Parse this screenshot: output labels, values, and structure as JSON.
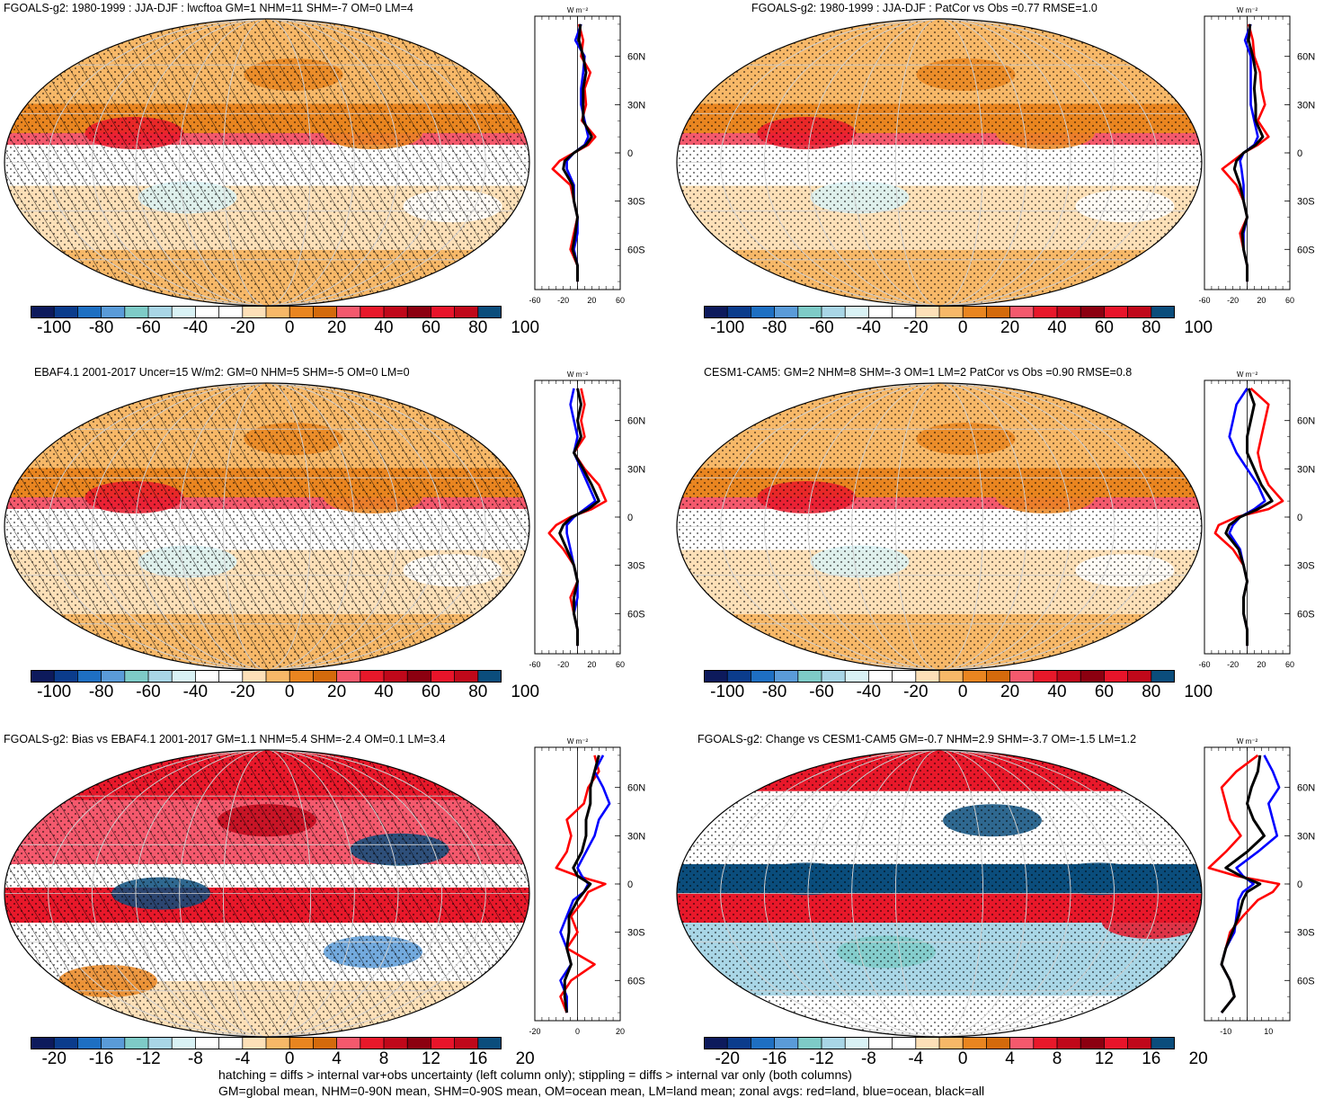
{
  "panels": [
    {
      "id": "p1",
      "title": "FGOALS-g2: 1980-1999 : JJA-DJF : lwcftoa GM=1 NHM=11 SHM=-7 OM=0 LM=4",
      "hatching": true,
      "pattern": "abs",
      "colorbar_labels": [
        "-100",
        "-80",
        "-60",
        "-40",
        "-20",
        "0",
        "20",
        "40",
        "60",
        "80",
        "100"
      ],
      "zonal": {
        "unit": "W m⁻²",
        "xticks": [
          "-60",
          "-20",
          "20",
          "60"
        ],
        "xlim": [
          -60,
          60
        ],
        "lat_labels": [
          "60N",
          "30N",
          "0",
          "30S",
          "60S"
        ],
        "lat": [
          80,
          70,
          60,
          50,
          40,
          30,
          20,
          10,
          5,
          0,
          -5,
          -10,
          -20,
          -30,
          -40,
          -50,
          -60,
          -70,
          -80
        ],
        "red": [
          2,
          8,
          5,
          18,
          10,
          12,
          6,
          25,
          15,
          -5,
          -25,
          -35,
          -10,
          -5,
          0,
          -5,
          -10,
          0,
          0
        ],
        "blue": [
          5,
          -3,
          10,
          8,
          5,
          5,
          10,
          15,
          10,
          -5,
          -15,
          -15,
          -5,
          -5,
          0,
          0,
          -5,
          0,
          0
        ],
        "black": [
          4,
          2,
          8,
          12,
          8,
          8,
          8,
          20,
          12,
          -5,
          -18,
          -20,
          -7,
          -5,
          0,
          -3,
          -7,
          0,
          0
        ]
      }
    },
    {
      "id": "p2",
      "title": "FGOALS-g2: 1980-1999 : JJA-DJF : PatCor vs Obs =0.77 RMSE=1.0",
      "hatching": false,
      "pattern": "abs",
      "colorbar_labels": [
        "-100",
        "-80",
        "-60",
        "-40",
        "-20",
        "0",
        "20",
        "40",
        "60",
        "80",
        "100"
      ],
      "zonal": {
        "unit": "W m⁻²",
        "xticks": [
          "-60",
          "-20",
          "20",
          "60"
        ],
        "xlim": [
          -60,
          60
        ],
        "lat_labels": [
          "60N",
          "30N",
          "0",
          "30S",
          "60S"
        ],
        "lat": [
          80,
          70,
          60,
          50,
          40,
          30,
          20,
          10,
          5,
          0,
          -5,
          -10,
          -20,
          -30,
          -40,
          -50,
          -60,
          -70,
          -80
        ],
        "red": [
          2,
          8,
          10,
          18,
          20,
          25,
          15,
          30,
          15,
          -5,
          -20,
          -35,
          -15,
          -5,
          0,
          -10,
          -5,
          0,
          0
        ],
        "blue": [
          5,
          -3,
          5,
          5,
          5,
          5,
          10,
          15,
          10,
          -5,
          -10,
          -8,
          -5,
          -5,
          0,
          -5,
          -5,
          0,
          0
        ],
        "black": [
          4,
          2,
          8,
          12,
          10,
          12,
          12,
          22,
          12,
          -5,
          -15,
          -18,
          -10,
          -5,
          0,
          -7,
          -5,
          0,
          0
        ]
      }
    },
    {
      "id": "p3",
      "title": "EBAF4.1 2001-2017 Uncer=15 W/m2: GM=0 NHM=5 SHM=-5 OM=0 LM=0",
      "hatching": true,
      "pattern": "abs",
      "colorbar_labels": [
        "-100",
        "-80",
        "-60",
        "-40",
        "-20",
        "0",
        "20",
        "40",
        "60",
        "80",
        "100"
      ],
      "zonal": {
        "unit": "W m⁻²",
        "xticks": [
          "-60",
          "-20",
          "20",
          "60"
        ],
        "xlim": [
          -60,
          60
        ],
        "lat_labels": [
          "60N",
          "30N",
          "0",
          "30S",
          "60S"
        ],
        "lat": [
          80,
          70,
          60,
          50,
          40,
          30,
          20,
          10,
          5,
          0,
          -5,
          -10,
          -20,
          -30,
          -40,
          -50,
          -60,
          -70,
          -80
        ],
        "red": [
          5,
          10,
          5,
          10,
          -5,
          10,
          30,
          40,
          20,
          -10,
          -30,
          -40,
          -20,
          -5,
          0,
          -10,
          -5,
          0,
          0
        ],
        "blue": [
          -5,
          -10,
          -5,
          0,
          -5,
          5,
          15,
          25,
          10,
          -5,
          -15,
          -15,
          -10,
          -5,
          0,
          0,
          -5,
          0,
          0
        ],
        "black": [
          0,
          5,
          0,
          5,
          -5,
          8,
          20,
          30,
          15,
          -8,
          -20,
          -25,
          -15,
          -5,
          0,
          -5,
          -5,
          0,
          0
        ]
      }
    },
    {
      "id": "p4",
      "title": "CESM1-CAM5: GM=2 NHM=8 SHM=-3 OM=1 LM=2 PatCor vs Obs =0.90 RMSE=0.8",
      "hatching": false,
      "pattern": "abs",
      "colorbar_labels": [
        "-100",
        "-80",
        "-60",
        "-40",
        "-20",
        "0",
        "20",
        "40",
        "60",
        "80",
        "100"
      ],
      "zonal": {
        "unit": "W m⁻²",
        "xticks": [
          "-60",
          "-20",
          "20",
          "60"
        ],
        "xlim": [
          -60,
          60
        ],
        "lat_labels": [
          "60N",
          "30N",
          "0",
          "30S",
          "60S"
        ],
        "lat": [
          80,
          70,
          60,
          50,
          40,
          30,
          20,
          10,
          5,
          0,
          -5,
          -10,
          -20,
          -30,
          -40,
          -50,
          -60,
          -70,
          -80
        ],
        "red": [
          5,
          30,
          25,
          20,
          15,
          20,
          30,
          50,
          30,
          -15,
          -40,
          -45,
          -20,
          -5,
          0,
          -5,
          -5,
          0,
          0
        ],
        "blue": [
          0,
          -15,
          -20,
          -25,
          -15,
          0,
          15,
          25,
          10,
          -10,
          -20,
          -25,
          -10,
          -5,
          0,
          -5,
          -5,
          0,
          0
        ],
        "black": [
          2,
          10,
          5,
          0,
          0,
          10,
          20,
          35,
          15,
          -10,
          -25,
          -30,
          -12,
          -5,
          0,
          -5,
          -5,
          0,
          0
        ]
      }
    },
    {
      "id": "p5",
      "title": "FGOALS-g2: Bias vs EBAF4.1 2001-2017 GM=1.1 NHM=5.4 SHM=-2.4 OM=0.1 LM=3.4",
      "hatching": true,
      "pattern": "bias",
      "colorbar_labels": [
        "-20",
        "-16",
        "-12",
        "-8",
        "-4",
        "0",
        "4",
        "8",
        "12",
        "16",
        "20"
      ],
      "zonal": {
        "unit": "W m⁻²",
        "xticks": [
          "-20",
          "0",
          "20"
        ],
        "xlim": [
          -20,
          20
        ],
        "lat_labels": [
          "60N",
          "30N",
          "0",
          "30S",
          "60S"
        ],
        "lat": [
          80,
          70,
          60,
          50,
          40,
          30,
          20,
          10,
          5,
          0,
          -5,
          -10,
          -20,
          -30,
          -40,
          -50,
          -60,
          -70,
          -80
        ],
        "red": [
          8,
          10,
          5,
          3,
          -5,
          -3,
          -5,
          -10,
          0,
          13,
          5,
          3,
          -3,
          0,
          -5,
          8,
          -3,
          -8,
          -5
        ],
        "blue": [
          12,
          8,
          12,
          15,
          10,
          8,
          4,
          0,
          2,
          5,
          3,
          -2,
          -5,
          -8,
          -5,
          -3,
          -8,
          -5,
          -5
        ],
        "black": [
          10,
          8,
          6,
          6,
          4,
          4,
          2,
          -2,
          0,
          6,
          3,
          0,
          -4,
          -4,
          -5,
          -3,
          -6,
          -6,
          -5
        ]
      }
    },
    {
      "id": "p6",
      "title": "FGOALS-g2: Change vs CESM1-CAM5 GM=-0.7 NHM=2.9 SHM=-3.7 OM=-1.5 LM=1.2",
      "hatching": false,
      "pattern": "change",
      "colorbar_labels": [
        "-20",
        "-16",
        "-12",
        "-8",
        "-4",
        "0",
        "4",
        "8",
        "12",
        "16",
        "20"
      ],
      "zonal": {
        "unit": "W m⁻²",
        "xticks": [
          "-10",
          "10"
        ],
        "xlim": [
          -20,
          20
        ],
        "lat_labels": [
          "60N",
          "30N",
          "0",
          "30S",
          "60S"
        ],
        "lat": [
          80,
          70,
          60,
          50,
          40,
          30,
          20,
          10,
          5,
          0,
          -5,
          -10,
          -20,
          -30,
          -40,
          -50,
          -60,
          -70,
          -80
        ],
        "red": [
          5,
          -5,
          -12,
          -10,
          -8,
          -3,
          -10,
          -18,
          -5,
          15,
          12,
          5,
          -2,
          -8,
          -10,
          -12,
          -8,
          -6,
          -12
        ],
        "blue": [
          8,
          12,
          15,
          10,
          12,
          14,
          5,
          -5,
          -2,
          3,
          -2,
          -4,
          -5,
          -6,
          -10,
          -12,
          -8,
          -6,
          -12
        ],
        "black": [
          6,
          5,
          2,
          0,
          3,
          8,
          0,
          -10,
          -3,
          6,
          0,
          -2,
          -4,
          -7,
          -10,
          -12,
          -8,
          -6,
          -12
        ]
      }
    }
  ],
  "footer": {
    "line1": "hatching = diffs > internal var+obs uncertainty (left column only); stippling = diffs > internal var only (both columns)",
    "line2": "GM=global mean, NHM=0-90N mean, SHM=0-90S mean, OM=ocean mean, LM=land mean; zonal avgs: red=land, blue=ocean, black=all"
  },
  "colors": {
    "palette": [
      "#0d1a5c",
      "#0b3c8c",
      "#1e6fc2",
      "#5a9bd8",
      "#7ecbc7",
      "#a9d6e6",
      "#d9f2f5",
      "#ffffff",
      "#ffffff",
      "#fde0b8",
      "#f7b868",
      "#e98520",
      "#d46a0c",
      "#f4596d",
      "#e8182a",
      "#c0081a",
      "#8c0010",
      "#e8142a",
      "#c0081a",
      "#0b4d7c"
    ],
    "red_line": "#ff0000",
    "blue_line": "#0000ff",
    "black_line": "#000000"
  }
}
